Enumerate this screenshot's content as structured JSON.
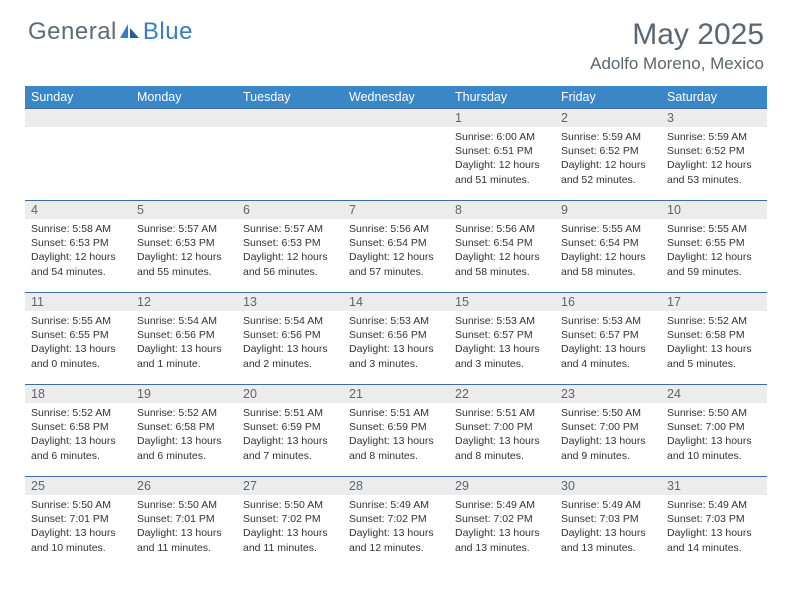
{
  "brand": {
    "general": "General",
    "blue": "Blue"
  },
  "title": "May 2025",
  "location": "Adolfo Moreno, Mexico",
  "colors": {
    "header_bg": "#3b86c7",
    "date_bar_bg": "#ececec",
    "border": "#3b6fa0",
    "text_muted": "#5a6671"
  },
  "day_names": [
    "Sunday",
    "Monday",
    "Tuesday",
    "Wednesday",
    "Thursday",
    "Friday",
    "Saturday"
  ],
  "weeks": [
    [
      null,
      null,
      null,
      null,
      {
        "d": "1",
        "sr": "6:00 AM",
        "ss": "6:51 PM",
        "dl": "12 hours and 51 minutes."
      },
      {
        "d": "2",
        "sr": "5:59 AM",
        "ss": "6:52 PM",
        "dl": "12 hours and 52 minutes."
      },
      {
        "d": "3",
        "sr": "5:59 AM",
        "ss": "6:52 PM",
        "dl": "12 hours and 53 minutes."
      }
    ],
    [
      {
        "d": "4",
        "sr": "5:58 AM",
        "ss": "6:53 PM",
        "dl": "12 hours and 54 minutes."
      },
      {
        "d": "5",
        "sr": "5:57 AM",
        "ss": "6:53 PM",
        "dl": "12 hours and 55 minutes."
      },
      {
        "d": "6",
        "sr": "5:57 AM",
        "ss": "6:53 PM",
        "dl": "12 hours and 56 minutes."
      },
      {
        "d": "7",
        "sr": "5:56 AM",
        "ss": "6:54 PM",
        "dl": "12 hours and 57 minutes."
      },
      {
        "d": "8",
        "sr": "5:56 AM",
        "ss": "6:54 PM",
        "dl": "12 hours and 58 minutes."
      },
      {
        "d": "9",
        "sr": "5:55 AM",
        "ss": "6:54 PM",
        "dl": "12 hours and 58 minutes."
      },
      {
        "d": "10",
        "sr": "5:55 AM",
        "ss": "6:55 PM",
        "dl": "12 hours and 59 minutes."
      }
    ],
    [
      {
        "d": "11",
        "sr": "5:55 AM",
        "ss": "6:55 PM",
        "dl": "13 hours and 0 minutes."
      },
      {
        "d": "12",
        "sr": "5:54 AM",
        "ss": "6:56 PM",
        "dl": "13 hours and 1 minute."
      },
      {
        "d": "13",
        "sr": "5:54 AM",
        "ss": "6:56 PM",
        "dl": "13 hours and 2 minutes."
      },
      {
        "d": "14",
        "sr": "5:53 AM",
        "ss": "6:56 PM",
        "dl": "13 hours and 3 minutes."
      },
      {
        "d": "15",
        "sr": "5:53 AM",
        "ss": "6:57 PM",
        "dl": "13 hours and 3 minutes."
      },
      {
        "d": "16",
        "sr": "5:53 AM",
        "ss": "6:57 PM",
        "dl": "13 hours and 4 minutes."
      },
      {
        "d": "17",
        "sr": "5:52 AM",
        "ss": "6:58 PM",
        "dl": "13 hours and 5 minutes."
      }
    ],
    [
      {
        "d": "18",
        "sr": "5:52 AM",
        "ss": "6:58 PM",
        "dl": "13 hours and 6 minutes."
      },
      {
        "d": "19",
        "sr": "5:52 AM",
        "ss": "6:58 PM",
        "dl": "13 hours and 6 minutes."
      },
      {
        "d": "20",
        "sr": "5:51 AM",
        "ss": "6:59 PM",
        "dl": "13 hours and 7 minutes."
      },
      {
        "d": "21",
        "sr": "5:51 AM",
        "ss": "6:59 PM",
        "dl": "13 hours and 8 minutes."
      },
      {
        "d": "22",
        "sr": "5:51 AM",
        "ss": "7:00 PM",
        "dl": "13 hours and 8 minutes."
      },
      {
        "d": "23",
        "sr": "5:50 AM",
        "ss": "7:00 PM",
        "dl": "13 hours and 9 minutes."
      },
      {
        "d": "24",
        "sr": "5:50 AM",
        "ss": "7:00 PM",
        "dl": "13 hours and 10 minutes."
      }
    ],
    [
      {
        "d": "25",
        "sr": "5:50 AM",
        "ss": "7:01 PM",
        "dl": "13 hours and 10 minutes."
      },
      {
        "d": "26",
        "sr": "5:50 AM",
        "ss": "7:01 PM",
        "dl": "13 hours and 11 minutes."
      },
      {
        "d": "27",
        "sr": "5:50 AM",
        "ss": "7:02 PM",
        "dl": "13 hours and 11 minutes."
      },
      {
        "d": "28",
        "sr": "5:49 AM",
        "ss": "7:02 PM",
        "dl": "13 hours and 12 minutes."
      },
      {
        "d": "29",
        "sr": "5:49 AM",
        "ss": "7:02 PM",
        "dl": "13 hours and 13 minutes."
      },
      {
        "d": "30",
        "sr": "5:49 AM",
        "ss": "7:03 PM",
        "dl": "13 hours and 13 minutes."
      },
      {
        "d": "31",
        "sr": "5:49 AM",
        "ss": "7:03 PM",
        "dl": "13 hours and 14 minutes."
      }
    ]
  ],
  "labels": {
    "sunrise": "Sunrise: ",
    "sunset": "Sunset: ",
    "daylight": "Daylight: "
  }
}
